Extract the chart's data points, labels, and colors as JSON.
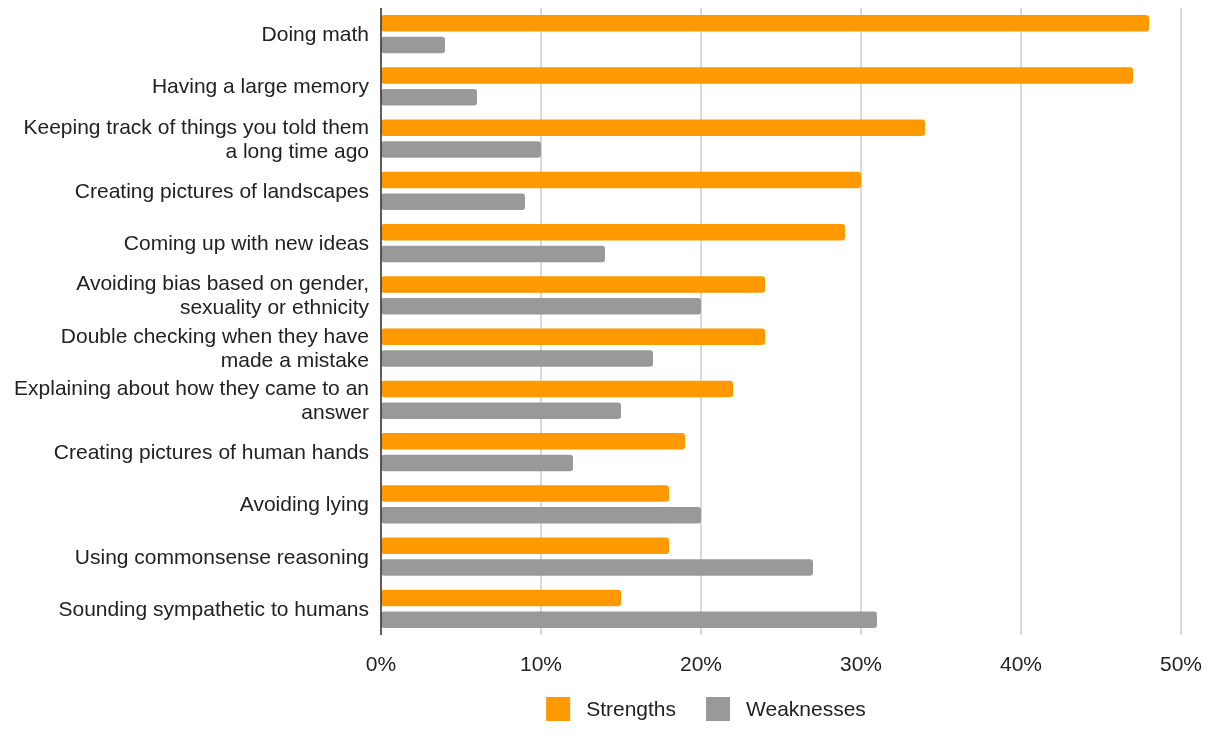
{
  "chart_data": {
    "type": "bar",
    "orientation": "horizontal",
    "categories": [
      "Doing math",
      "Having a large memory",
      "Keeping track of things you told them a long time ago",
      "Creating pictures of landscapes",
      "Coming up with new ideas",
      "Avoiding bias based on gender, sexuality or ethnicity",
      "Double checking when they have made a mistake",
      "Explaining about how they came to an answer",
      "Creating pictures of human hands",
      "Avoiding lying",
      "Using commonsense reasoning",
      "Sounding sympathetic to humans"
    ],
    "series": [
      {
        "name": "Strengths",
        "color": "#ff9900",
        "values": [
          48,
          47,
          34,
          30,
          29,
          24,
          24,
          22,
          19,
          18,
          18,
          15
        ]
      },
      {
        "name": "Weaknesses",
        "color": "#999999",
        "values": [
          4,
          6,
          10,
          9,
          14,
          20,
          17,
          15,
          12,
          20,
          27,
          31
        ]
      }
    ],
    "xlim": [
      0,
      50
    ],
    "xticks": [
      {
        "value": 0,
        "label": "0%"
      },
      {
        "value": 10,
        "label": "10%"
      },
      {
        "value": 20,
        "label": "20%"
      },
      {
        "value": 30,
        "label": "30%"
      },
      {
        "value": 40,
        "label": "40%"
      },
      {
        "value": 50,
        "label": "50%"
      }
    ],
    "grid": "x",
    "legend": "bottom"
  }
}
